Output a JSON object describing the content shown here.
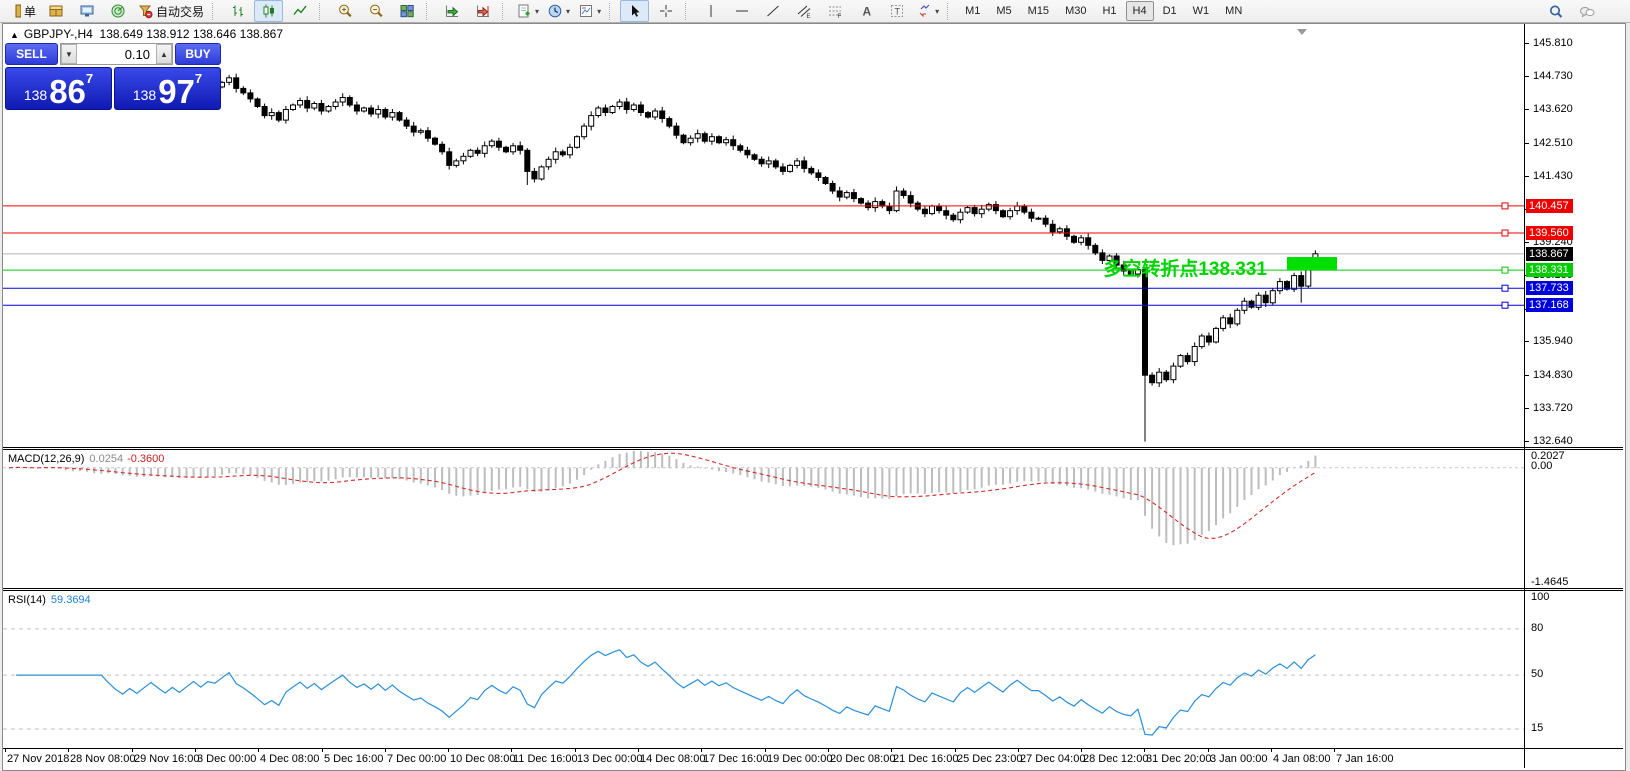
{
  "toolbar": {
    "items": [
      {
        "name": "new-order-button",
        "icon": "neworder",
        "label": "单"
      },
      {
        "name": "market-watch-button",
        "icon": "book"
      },
      {
        "name": "data-window-button",
        "icon": "monitor"
      },
      {
        "name": "navigator-button",
        "icon": "radar"
      },
      {
        "name": "autotrading-button",
        "icon": "autotrade",
        "label": "自动交易"
      },
      {
        "sep": true
      },
      {
        "name": "bar-chart-button",
        "icon": "bars"
      },
      {
        "name": "candle-chart-button",
        "icon": "candle",
        "active": true
      },
      {
        "name": "line-chart-button",
        "icon": "linechart"
      },
      {
        "sep": true
      },
      {
        "name": "zoom-in-button",
        "icon": "zoomin"
      },
      {
        "name": "zoom-out-button",
        "icon": "zoomout"
      },
      {
        "name": "tile-windows-button",
        "icon": "tile"
      },
      {
        "sep": true
      },
      {
        "name": "auto-scroll-button",
        "icon": "autoscroll"
      },
      {
        "name": "chart-shift-button",
        "icon": "chartshift"
      },
      {
        "sep": true
      },
      {
        "name": "new-chart-button",
        "icon": "newchart",
        "dropdown": true
      },
      {
        "name": "period-button",
        "icon": "clock",
        "dropdown": true
      },
      {
        "name": "template-button",
        "icon": "template",
        "dropdown": true
      },
      {
        "sep": true
      },
      {
        "name": "cursor-button",
        "icon": "cursor",
        "active": true
      },
      {
        "name": "crosshair-button",
        "icon": "crosshair"
      },
      {
        "sep": true
      },
      {
        "name": "vertical-line-button",
        "icon": "vline"
      },
      {
        "name": "horizontal-line-button",
        "icon": "hline"
      },
      {
        "name": "trendline-button",
        "icon": "trend"
      },
      {
        "name": "equidistant-channel-button",
        "icon": "channel"
      },
      {
        "name": "fibonacci-button",
        "icon": "fibo"
      },
      {
        "name": "text-button",
        "icon": "textA"
      },
      {
        "name": "text-label-button",
        "icon": "textT"
      },
      {
        "name": "arrows-button",
        "icon": "arrows",
        "dropdown": true
      },
      {
        "sep": true
      }
    ],
    "timeframes": [
      "M1",
      "M5",
      "M15",
      "M30",
      "H1",
      "H4",
      "D1",
      "W1",
      "MN"
    ],
    "active_timeframe": "H4",
    "right_items": [
      {
        "name": "search-button",
        "icon": "search"
      },
      {
        "name": "chat-button",
        "icon": "chat"
      }
    ]
  },
  "chart": {
    "title": {
      "collapse_glyph": "▲",
      "symbol": "GBPJPY-,H4",
      "ohlc": "138.649 138.912 138.646 138.867"
    },
    "trade_panel": {
      "sell_label": "SELL",
      "buy_label": "BUY",
      "volume": "0.10",
      "spin_down_glyph": "▼",
      "spin_up_glyph": "▲",
      "bid": {
        "prefix": "138",
        "big": "86",
        "sup": "7"
      },
      "ask": {
        "prefix": "138",
        "big": "97",
        "sup": "7"
      }
    },
    "annotation": {
      "text": "多空转折点138.331",
      "color": "#00d400"
    },
    "green_box": {
      "color": "#00e000"
    },
    "hlines": [
      {
        "price": 140.457,
        "label": "140.457",
        "color": "#ee0000",
        "label_bg": "#ee0000"
      },
      {
        "price": 139.56,
        "label": "139.560",
        "color": "#ee0000",
        "label_bg": "#ee0000"
      },
      {
        "price": 138.867,
        "label": "138.867",
        "color": "#b2b2b2",
        "label_bg": "#000000",
        "current": true
      },
      {
        "price": 138.331,
        "label": "138.331",
        "color": "#00cc00",
        "label_bg": "#00cc00"
      },
      {
        "price": 137.733,
        "label": "137.733",
        "color": "#0000dd",
        "label_bg": "#0000dd"
      },
      {
        "price": 137.168,
        "label": "137.168",
        "color": "#0000dd",
        "label_bg": "#0000dd"
      }
    ],
    "price_axis": {
      "ticks": [
        145.81,
        144.73,
        143.62,
        142.51,
        141.43,
        140.32,
        139.24,
        138.13,
        137.02,
        135.94,
        134.83,
        133.72,
        132.64
      ]
    },
    "time_axis": {
      "labels": [
        "27 Nov 2018",
        "28 Nov 08:00",
        "29 Nov 16:00",
        "3 Dec 00:00",
        "4 Dec 08:00",
        "5 Dec 16:00",
        "7 Dec 00:00",
        "10 Dec 08:00",
        "11 Dec 16:00",
        "13 Dec 00:00",
        "14 Dec 08:00",
        "17 Dec 16:00",
        "19 Dec 00:00",
        "20 Dec 08:00",
        "21 Dec 16:00",
        "25 Dec 23:00",
        "27 Dec 04:00",
        "28 Dec 12:00",
        "31 Dec 20:00",
        "3 Jan 00:00",
        "4 Jan 08:00",
        "7 Jan 16:00"
      ]
    }
  },
  "macd": {
    "name": "MACD(12,26,9)",
    "value_main": "0.0254",
    "value_signal": "-0.3600",
    "axis": {
      "top": "0.2027",
      "zero": "0.00",
      "bottom": "-1.4645"
    },
    "range": {
      "max": 0.2027,
      "min": -1.4645
    },
    "params": {
      "fast": 12,
      "slow": 26,
      "signal": 9
    }
  },
  "rsi": {
    "name": "RSI(14)",
    "value": "59.3694",
    "period": 14,
    "axis_labels": [
      "100",
      "80",
      "50",
      "15"
    ],
    "levels": [
      100,
      80,
      50,
      15
    ],
    "dashed_levels": [
      80,
      50,
      15
    ]
  },
  "chart_data": {
    "type": "candlestick",
    "symbol": "GBPJPY-",
    "timeframe": "H4",
    "ylim": [
      132.47,
      146.45
    ],
    "prehistory_closes": [
      145.1,
      145.25,
      145.05,
      144.9,
      145.15,
      145.3,
      145.1,
      144.85,
      144.65,
      144.8,
      144.95,
      144.75,
      144.55,
      144.7,
      144.85,
      144.6,
      144.4,
      144.55,
      144.35,
      144.5,
      144.65,
      144.45,
      144.25,
      144.4,
      144.2,
      144.35,
      144.5,
      144.3,
      144.45,
      144.4
    ],
    "first_open": 144.4,
    "closes": [
      144.55,
      144.7,
      144.35,
      144.2,
      144.0,
      143.75,
      143.45,
      143.55,
      143.3,
      143.65,
      143.8,
      143.95,
      143.7,
      143.85,
      143.6,
      143.75,
      143.9,
      144.05,
      143.8,
      143.6,
      143.7,
      143.5,
      143.65,
      143.4,
      143.55,
      143.3,
      143.1,
      142.9,
      142.95,
      142.7,
      142.5,
      142.25,
      141.8,
      141.95,
      142.1,
      142.3,
      142.2,
      142.45,
      142.6,
      142.4,
      142.25,
      142.45,
      142.3,
      141.6,
      141.35,
      141.75,
      142.0,
      142.25,
      142.15,
      142.4,
      142.75,
      143.1,
      143.45,
      143.7,
      143.55,
      143.75,
      143.9,
      143.65,
      143.8,
      143.55,
      143.4,
      143.6,
      143.35,
      143.1,
      142.8,
      142.55,
      142.7,
      142.85,
      142.6,
      142.75,
      142.55,
      142.65,
      142.45,
      142.3,
      142.15,
      142.0,
      141.85,
      141.95,
      141.75,
      141.6,
      141.8,
      141.95,
      141.7,
      141.55,
      141.4,
      141.2,
      140.95,
      140.75,
      140.9,
      140.7,
      140.55,
      140.4,
      140.6,
      140.45,
      140.3,
      140.95,
      140.8,
      140.55,
      140.35,
      140.2,
      140.45,
      140.3,
      140.15,
      140.0,
      140.25,
      140.4,
      140.2,
      140.35,
      140.5,
      140.3,
      140.1,
      140.3,
      140.45,
      140.25,
      140.05,
      140.05,
      139.85,
      139.6,
      139.7,
      139.45,
      139.25,
      139.4,
      139.15,
      138.9,
      138.65,
      138.8,
      138.5,
      138.3,
      138.2,
      138.35,
      134.85,
      134.6,
      134.95,
      134.7,
      135.15,
      135.5,
      135.3,
      135.8,
      136.15,
      135.95,
      136.4,
      136.75,
      136.55,
      137.0,
      137.3,
      137.1,
      137.5,
      137.25,
      137.65,
      137.95,
      137.7,
      138.15,
      137.8,
      138.45,
      138.87
    ],
    "special_candles": {
      "43": {
        "low": 141.15
      },
      "95": {
        "high": 141.1
      },
      "130": {
        "low": 132.65
      },
      "152": {
        "low": 137.25
      }
    },
    "current_price": 138.867
  }
}
